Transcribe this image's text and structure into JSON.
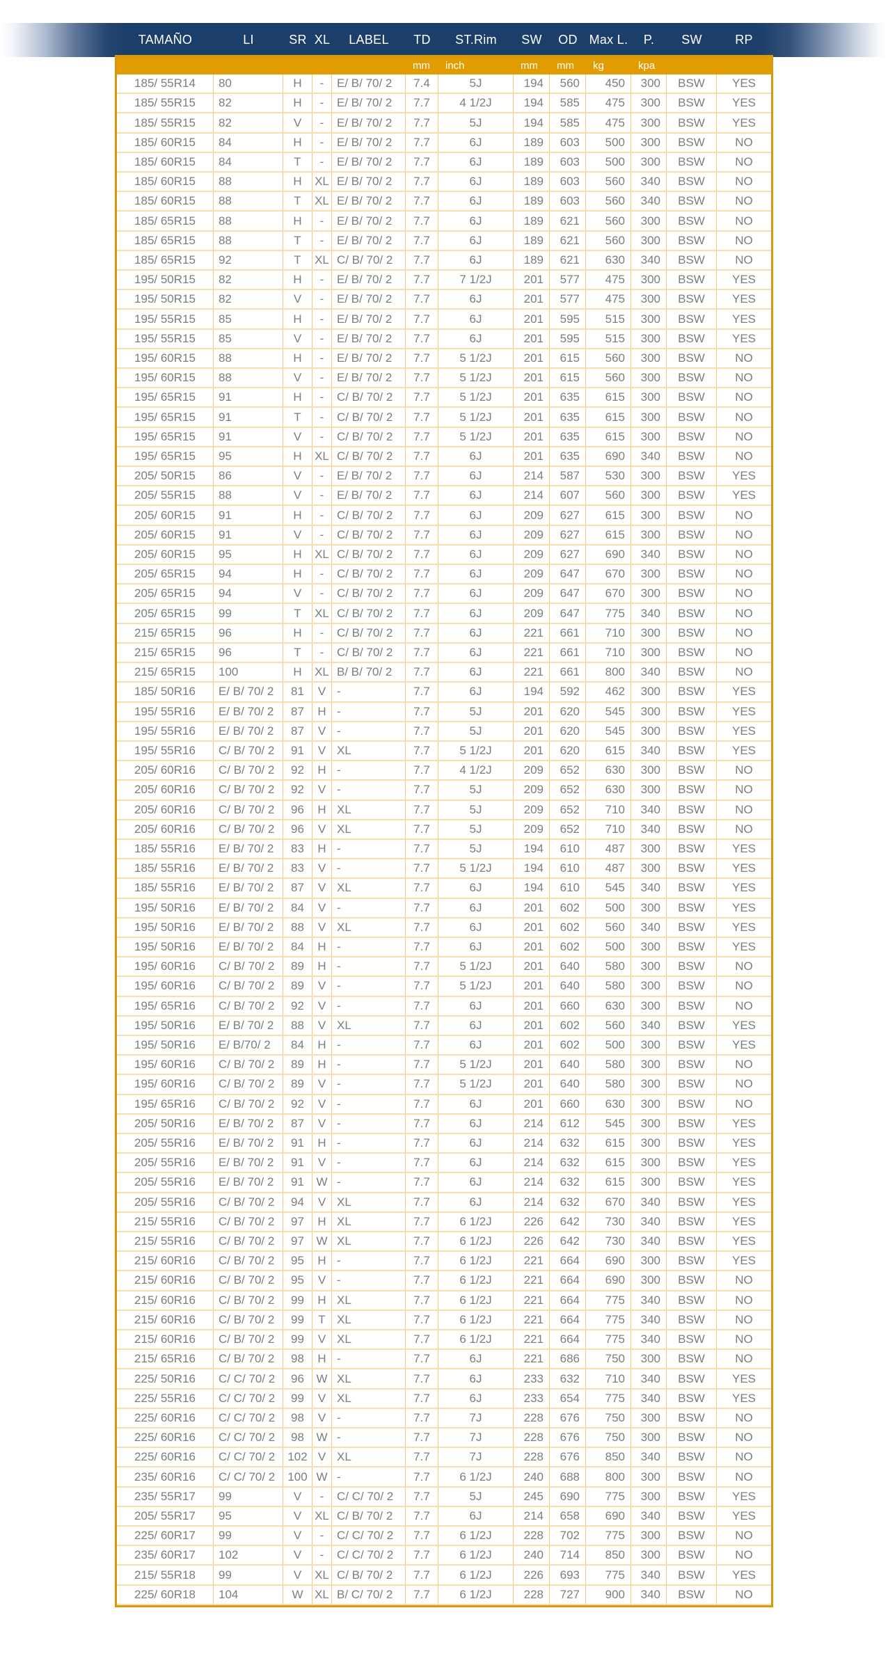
{
  "header": {
    "columns": [
      "TAMAÑO",
      "LI",
      "SR",
      "XL",
      "LABEL",
      "TD",
      "ST.Rim",
      "SW",
      "OD",
      "Max L.",
      "P.",
      "SW",
      "RP"
    ]
  },
  "units_row": [
    "",
    "",
    "",
    "",
    "",
    "mm",
    "inch",
    "mm",
    "mm",
    "kg",
    "kpa",
    "",
    ""
  ],
  "colors": {
    "band_navy": "#1c3e6a",
    "band_orange": "#e09c00",
    "text_gray": "#7d7d7d",
    "border_strong": "#d89a0a",
    "border_row": "#f8ddb0",
    "border_column": "#f3c87e"
  },
  "table": {
    "rows": [
      [
        "185/ 55R14",
        "80",
        "H",
        "-",
        "E/ B/ 70/ 2",
        "7.4",
        "5J",
        "194",
        "560",
        "450",
        "300",
        "BSW",
        "YES"
      ],
      [
        "185/ 55R15",
        "82",
        "H",
        "-",
        "E/ B/ 70/ 2",
        "7.7",
        "4 1/2J",
        "194",
        "585",
        "475",
        "300",
        "BSW",
        "YES"
      ],
      [
        "185/ 55R15",
        "82",
        "V",
        "-",
        "E/ B/ 70/ 2",
        "7.7",
        "5J",
        "194",
        "585",
        "475",
        "300",
        "BSW",
        "YES"
      ],
      [
        "185/ 60R15",
        "84",
        "H",
        "-",
        "E/ B/ 70/ 2",
        "7.7",
        "6J",
        "189",
        "603",
        "500",
        "300",
        "BSW",
        "NO"
      ],
      [
        "185/ 60R15",
        "84",
        "T",
        "-",
        "E/ B/ 70/ 2",
        "7.7",
        "6J",
        "189",
        "603",
        "500",
        "300",
        "BSW",
        "NO"
      ],
      [
        "185/ 60R15",
        "88",
        "H",
        "XL",
        "E/ B/ 70/ 2",
        "7.7",
        "6J",
        "189",
        "603",
        "560",
        "340",
        "BSW",
        "NO"
      ],
      [
        "185/ 60R15",
        "88",
        "T",
        "XL",
        "E/ B/ 70/ 2",
        "7.7",
        "6J",
        "189",
        "603",
        "560",
        "340",
        "BSW",
        "NO"
      ],
      [
        "185/ 65R15",
        "88",
        "H",
        "-",
        "E/ B/ 70/ 2",
        "7.7",
        "6J",
        "189",
        "621",
        "560",
        "300",
        "BSW",
        "NO"
      ],
      [
        "185/ 65R15",
        "88",
        "T",
        "-",
        "E/ B/ 70/ 2",
        "7.7",
        "6J",
        "189",
        "621",
        "560",
        "300",
        "BSW",
        "NO"
      ],
      [
        "185/ 65R15",
        "92",
        "T",
        "XL",
        "C/ B/ 70/ 2",
        "7.7",
        "6J",
        "189",
        "621",
        "630",
        "340",
        "BSW",
        "NO"
      ],
      [
        "195/ 50R15",
        "82",
        "H",
        "-",
        "E/ B/ 70/ 2",
        "7.7",
        "7 1/2J",
        "201",
        "577",
        "475",
        "300",
        "BSW",
        "YES"
      ],
      [
        "195/ 50R15",
        "82",
        "V",
        "-",
        "E/ B/ 70/ 2",
        "7.7",
        "6J",
        "201",
        "577",
        "475",
        "300",
        "BSW",
        "YES"
      ],
      [
        "195/ 55R15",
        "85",
        "H",
        "-",
        "E/ B/ 70/ 2",
        "7.7",
        "6J",
        "201",
        "595",
        "515",
        "300",
        "BSW",
        "YES"
      ],
      [
        "195/ 55R15",
        "85",
        "V",
        "-",
        "E/ B/ 70/ 2",
        "7.7",
        "6J",
        "201",
        "595",
        "515",
        "300",
        "BSW",
        "YES"
      ],
      [
        "195/ 60R15",
        "88",
        "H",
        "-",
        "E/ B/ 70/ 2",
        "7.7",
        "5 1/2J",
        "201",
        "615",
        "560",
        "300",
        "BSW",
        "NO"
      ],
      [
        "195/ 60R15",
        "88",
        "V",
        "-",
        "E/ B/ 70/ 2",
        "7.7",
        "5 1/2J",
        "201",
        "615",
        "560",
        "300",
        "BSW",
        "NO"
      ],
      [
        "195/ 65R15",
        "91",
        "H",
        "-",
        "C/ B/ 70/ 2",
        "7.7",
        "5 1/2J",
        "201",
        "635",
        "615",
        "300",
        "BSW",
        "NO"
      ],
      [
        "195/ 65R15",
        "91",
        "T",
        "-",
        "C/ B/ 70/ 2",
        "7.7",
        "5 1/2J",
        "201",
        "635",
        "615",
        "300",
        "BSW",
        "NO"
      ],
      [
        "195/ 65R15",
        "91",
        "V",
        "-",
        "C/ B/ 70/ 2",
        "7.7",
        "5 1/2J",
        "201",
        "635",
        "615",
        "300",
        "BSW",
        "NO"
      ],
      [
        "195/ 65R15",
        "95",
        "H",
        "XL",
        "C/ B/ 70/ 2",
        "7.7",
        "6J",
        "201",
        "635",
        "690",
        "340",
        "BSW",
        "NO"
      ],
      [
        "205/ 50R15",
        "86",
        "V",
        "-",
        "E/ B/ 70/ 2",
        "7.7",
        "6J",
        "214",
        "587",
        "530",
        "300",
        "BSW",
        "YES"
      ],
      [
        "205/ 55R15",
        "88",
        "V",
        "-",
        "E/ B/ 70/ 2",
        "7.7",
        "6J",
        "214",
        "607",
        "560",
        "300",
        "BSW",
        "YES"
      ],
      [
        "205/ 60R15",
        "91",
        "H",
        "-",
        "C/ B/ 70/ 2",
        "7.7",
        "6J",
        "209",
        "627",
        "615",
        "300",
        "BSW",
        "NO"
      ],
      [
        "205/ 60R15",
        "91",
        "V",
        "-",
        "C/ B/ 70/ 2",
        "7.7",
        "6J",
        "209",
        "627",
        "615",
        "300",
        "BSW",
        "NO"
      ],
      [
        "205/ 60R15",
        "95",
        "H",
        "XL",
        "C/ B/ 70/ 2",
        "7.7",
        "6J",
        "209",
        "627",
        "690",
        "340",
        "BSW",
        "NO"
      ],
      [
        "205/ 65R15",
        "94",
        "H",
        "-",
        "C/ B/ 70/ 2",
        "7.7",
        "6J",
        "209",
        "647",
        "670",
        "300",
        "BSW",
        "NO"
      ],
      [
        "205/ 65R15",
        "94",
        "V",
        "-",
        "C/ B/ 70/ 2",
        "7.7",
        "6J",
        "209",
        "647",
        "670",
        "300",
        "BSW",
        "NO"
      ],
      [
        "205/ 65R15",
        "99",
        "T",
        "XL",
        "C/ B/ 70/ 2",
        "7.7",
        "6J",
        "209",
        "647",
        "775",
        "340",
        "BSW",
        "NO"
      ],
      [
        "215/ 65R15",
        "96",
        "H",
        "-",
        "C/ B/ 70/ 2",
        "7.7",
        "6J",
        "221",
        "661",
        "710",
        "300",
        "BSW",
        "NO"
      ],
      [
        "215/ 65R15",
        "96",
        "T",
        "-",
        "C/ B/ 70/ 2",
        "7.7",
        "6J",
        "221",
        "661",
        "710",
        "300",
        "BSW",
        "NO"
      ],
      [
        "215/ 65R15",
        "100",
        "H",
        "XL",
        "B/ B/ 70/ 2",
        "7.7",
        "6J",
        "221",
        "661",
        "800",
        "340",
        "BSW",
        "NO"
      ],
      [
        "185/ 50R16",
        "E/ B/ 70/ 2",
        "81",
        "V",
        "-",
        "7.7",
        "6J",
        "194",
        "592",
        "462",
        "300",
        "BSW",
        "YES"
      ],
      [
        "195/ 55R16",
        "E/ B/ 70/ 2",
        "87",
        "H",
        "-",
        "7.7",
        "5J",
        "201",
        "620",
        "545",
        "300",
        "BSW",
        "YES"
      ],
      [
        "195/ 55R16",
        "E/ B/ 70/ 2",
        "87",
        "V",
        "-",
        "7.7",
        "5J",
        "201",
        "620",
        "545",
        "300",
        "BSW",
        "YES"
      ],
      [
        "195/ 55R16",
        "C/ B/ 70/ 2",
        "91",
        "V",
        "XL",
        "7.7",
        "5 1/2J",
        "201",
        "620",
        "615",
        "340",
        "BSW",
        "YES"
      ],
      [
        "205/ 60R16",
        "C/ B/ 70/ 2",
        "92",
        "H",
        "-",
        "7.7",
        "4 1/2J",
        "209",
        "652",
        "630",
        "300",
        "BSW",
        "NO"
      ],
      [
        "205/ 60R16",
        "C/ B/ 70/ 2",
        "92",
        "V",
        "-",
        "7.7",
        "5J",
        "209",
        "652",
        "630",
        "300",
        "BSW",
        "NO"
      ],
      [
        "205/ 60R16",
        "C/ B/ 70/ 2",
        "96",
        "H",
        "XL",
        "7.7",
        "5J",
        "209",
        "652",
        "710",
        "340",
        "BSW",
        "NO"
      ],
      [
        "205/ 60R16",
        "C/ B/ 70/ 2",
        "96",
        "V",
        "XL",
        "7.7",
        "5J",
        "209",
        "652",
        "710",
        "340",
        "BSW",
        "NO"
      ],
      [
        "185/ 55R16",
        "E/ B/ 70/ 2",
        "83",
        "H",
        "-",
        "7.7",
        "5J",
        "194",
        "610",
        "487",
        "300",
        "BSW",
        "YES"
      ],
      [
        "185/ 55R16",
        "E/ B/ 70/ 2",
        "83",
        "V",
        "-",
        "7.7",
        "5 1/2J",
        "194",
        "610",
        "487",
        "300",
        "BSW",
        "YES"
      ],
      [
        "185/ 55R16",
        "E/ B/ 70/ 2",
        "87",
        "V",
        "XL",
        "7.7",
        "6J",
        "194",
        "610",
        "545",
        "340",
        "BSW",
        "YES"
      ],
      [
        "195/ 50R16",
        "E/ B/ 70/ 2",
        "84",
        "V",
        "-",
        "7.7",
        "6J",
        "201",
        "602",
        "500",
        "300",
        "BSW",
        "YES"
      ],
      [
        "195/ 50R16",
        "E/ B/ 70/ 2",
        "88",
        "V",
        "XL",
        "7.7",
        "6J",
        "201",
        "602",
        "560",
        "340",
        "BSW",
        "YES"
      ],
      [
        "195/ 50R16",
        "E/ B/ 70/ 2",
        "84",
        "H",
        "-",
        "7.7",
        "6J",
        "201",
        "602",
        "500",
        "300",
        "BSW",
        "YES"
      ],
      [
        "195/ 60R16",
        "C/ B/ 70/ 2",
        "89",
        "H",
        "-",
        "7.7",
        "5 1/2J",
        "201",
        "640",
        "580",
        "300",
        "BSW",
        "NO"
      ],
      [
        "195/ 60R16",
        "C/ B/ 70/ 2",
        "89",
        "V",
        "-",
        "7.7",
        "5 1/2J",
        "201",
        "640",
        "580",
        "300",
        "BSW",
        "NO"
      ],
      [
        "195/ 65R16",
        "C/ B/ 70/ 2",
        "92",
        "V",
        "-",
        "7.7",
        "6J",
        "201",
        "660",
        "630",
        "300",
        "BSW",
        "NO"
      ],
      [
        "195/ 50R16",
        "E/ B/ 70/ 2",
        "88",
        "V",
        "XL",
        "7.7",
        "6J",
        "201",
        "602",
        "560",
        "340",
        "BSW",
        "YES"
      ],
      [
        "195/ 50R16",
        "E/ B/70/ 2",
        "84",
        "H",
        "-",
        "7.7",
        "6J",
        "201",
        "602",
        "500",
        "300",
        "BSW",
        "YES"
      ],
      [
        "195/ 60R16",
        "C/ B/ 70/ 2",
        "89",
        "H",
        "-",
        "7.7",
        "5 1/2J",
        "201",
        "640",
        "580",
        "300",
        "BSW",
        "NO"
      ],
      [
        "195/ 60R16",
        "C/ B/ 70/ 2",
        "89",
        "V",
        "-",
        "7.7",
        "5 1/2J",
        "201",
        "640",
        "580",
        "300",
        "BSW",
        "NO"
      ],
      [
        "195/ 65R16",
        "C/ B/ 70/ 2",
        "92",
        "V",
        "-",
        "7.7",
        "6J",
        "201",
        "660",
        "630",
        "300",
        "BSW",
        "NO"
      ],
      [
        "205/ 50R16",
        "E/ B/ 70/ 2",
        "87",
        "V",
        "-",
        "7.7",
        "6J",
        "214",
        "612",
        "545",
        "300",
        "BSW",
        "YES"
      ],
      [
        "205/ 55R16",
        "E/ B/ 70/ 2",
        "91",
        "H",
        "-",
        "7.7",
        "6J",
        "214",
        "632",
        "615",
        "300",
        "BSW",
        "YES"
      ],
      [
        "205/ 55R16",
        "E/ B/ 70/ 2",
        "91",
        "V",
        "-",
        "7.7",
        "6J",
        "214",
        "632",
        "615",
        "300",
        "BSW",
        "YES"
      ],
      [
        "205/ 55R16",
        "E/ B/ 70/ 2",
        "91",
        "W",
        "-",
        "7.7",
        "6J",
        "214",
        "632",
        "615",
        "300",
        "BSW",
        "YES"
      ],
      [
        "205/ 55R16",
        "C/ B/ 70/ 2",
        "94",
        "V",
        "XL",
        "7.7",
        "6J",
        "214",
        "632",
        "670",
        "340",
        "BSW",
        "YES"
      ],
      [
        "215/ 55R16",
        "C/ B/ 70/ 2",
        "97",
        "H",
        "XL",
        "7.7",
        "6 1/2J",
        "226",
        "642",
        "730",
        "340",
        "BSW",
        "YES"
      ],
      [
        "215/ 55R16",
        "C/ B/ 70/ 2",
        "97",
        "W",
        "XL",
        "7.7",
        "6 1/2J",
        "226",
        "642",
        "730",
        "340",
        "BSW",
        "YES"
      ],
      [
        "215/ 60R16",
        "C/ B/ 70/ 2",
        "95",
        "H",
        "-",
        "7.7",
        "6 1/2J",
        "221",
        "664",
        "690",
        "300",
        "BSW",
        "YES"
      ],
      [
        "215/ 60R16",
        "C/ B/ 70/ 2",
        "95",
        "V",
        "-",
        "7.7",
        "6 1/2J",
        "221",
        "664",
        "690",
        "300",
        "BSW",
        "NO"
      ],
      [
        "215/ 60R16",
        "C/ B/ 70/ 2",
        "99",
        "H",
        "XL",
        "7.7",
        "6 1/2J",
        "221",
        "664",
        "775",
        "340",
        "BSW",
        "NO"
      ],
      [
        "215/ 60R16",
        "C/ B/ 70/ 2",
        "99",
        "T",
        "XL",
        "7.7",
        "6 1/2J",
        "221",
        "664",
        "775",
        "340",
        "BSW",
        "NO"
      ],
      [
        "215/ 60R16",
        "C/ B/ 70/ 2",
        "99",
        "V",
        "XL",
        "7.7",
        "6 1/2J",
        "221",
        "664",
        "775",
        "340",
        "BSW",
        "NO"
      ],
      [
        "215/ 65R16",
        "C/ B/ 70/ 2",
        "98",
        "H",
        "-",
        "7.7",
        "6J",
        "221",
        "686",
        "750",
        "300",
        "BSW",
        "NO"
      ],
      [
        "225/ 50R16",
        "C/ C/ 70/ 2",
        "96",
        "W",
        "XL",
        "7.7",
        "6J",
        "233",
        "632",
        "710",
        "340",
        "BSW",
        "YES"
      ],
      [
        "225/ 55R16",
        "C/ C/ 70/ 2",
        "99",
        "V",
        "XL",
        "7.7",
        "6J",
        "233",
        "654",
        "775",
        "340",
        "BSW",
        "YES"
      ],
      [
        "225/ 60R16",
        "C/ C/ 70/ 2",
        "98",
        "V",
        "-",
        "7.7",
        "7J",
        "228",
        "676",
        "750",
        "300",
        "BSW",
        "NO"
      ],
      [
        "225/ 60R16",
        "C/ C/ 70/ 2",
        "98",
        "W",
        "-",
        "7.7",
        "7J",
        "228",
        "676",
        "750",
        "300",
        "BSW",
        "NO"
      ],
      [
        "225/ 60R16",
        "C/ C/ 70/ 2",
        "102",
        "V",
        "XL",
        "7.7",
        "7J",
        "228",
        "676",
        "850",
        "340",
        "BSW",
        "NO"
      ],
      [
        "235/ 60R16",
        "C/ C/ 70/ 2",
        "100",
        "W",
        "-",
        "7.7",
        "6 1/2J",
        "240",
        "688",
        "800",
        "300",
        "BSW",
        "NO"
      ],
      [
        "235/ 55R17",
        "99",
        "V",
        "-",
        "C/ C/ 70/ 2",
        "7.7",
        "5J",
        "245",
        "690",
        "775",
        "300",
        "BSW",
        "YES"
      ],
      [
        "205/ 55R17",
        "95",
        "V",
        "XL",
        "C/ B/ 70/ 2",
        "7.7",
        "6J",
        "214",
        "658",
        "690",
        "340",
        "BSW",
        "YES"
      ],
      [
        "225/ 60R17",
        "99",
        "V",
        "-",
        "C/ C/ 70/ 2",
        "7.7",
        "6 1/2J",
        "228",
        "702",
        "775",
        "300",
        "BSW",
        "NO"
      ],
      [
        "235/ 60R17",
        "102",
        "V",
        "-",
        "C/ C/ 70/ 2",
        "7.7",
        "6 1/2J",
        "240",
        "714",
        "850",
        "300",
        "BSW",
        "NO"
      ],
      [
        "215/ 55R18",
        "99",
        "V",
        "XL",
        "C/ B/ 70/ 2",
        "7.7",
        "6 1/2J",
        "226",
        "693",
        "775",
        "340",
        "BSW",
        "YES"
      ],
      [
        "225/ 60R18",
        "104",
        "W",
        "XL",
        "B/ C/ 70/ 2",
        "7.7",
        "6 1/2J",
        "228",
        "727",
        "900",
        "340",
        "BSW",
        "NO"
      ]
    ]
  }
}
